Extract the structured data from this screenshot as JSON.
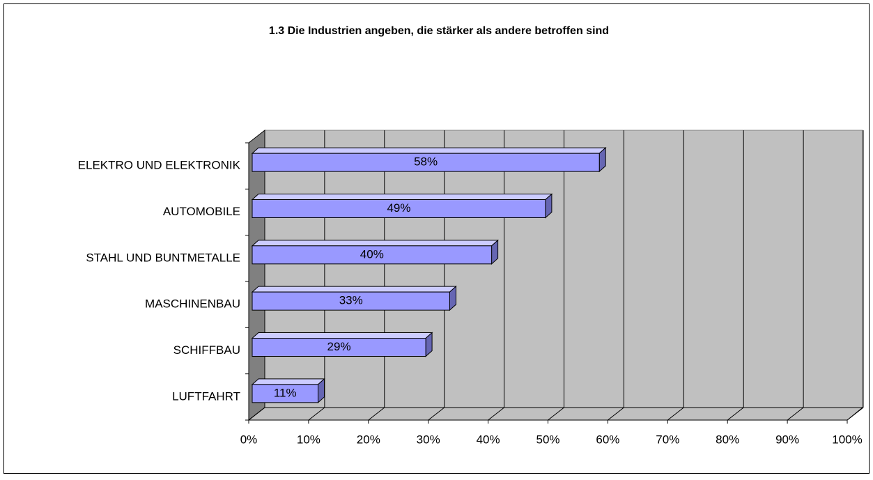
{
  "chart_data": {
    "type": "bar",
    "orientation": "horizontal",
    "title": "1.3 Die Industrien angeben, die stärker als andere betroffen sind",
    "categories": [
      "ELEKTRO UND ELEKTRONIK",
      "AUTOMOBILE",
      "STAHL UND BUNTMETALLE",
      "MASCHINENBAU",
      "SCHIFFBAU",
      "LUFTFAHRT"
    ],
    "values": [
      58,
      49,
      40,
      33,
      29,
      11
    ],
    "value_labels": [
      "58%",
      "49%",
      "40%",
      "33%",
      "29%",
      "11%"
    ],
    "color": "#9999ff",
    "xlim": [
      0,
      100
    ],
    "xticks": [
      {
        "value": 0,
        "label": "0%"
      },
      {
        "value": 10,
        "label": "10%"
      },
      {
        "value": 20,
        "label": "20%"
      },
      {
        "value": 30,
        "label": "30%"
      },
      {
        "value": 40,
        "label": "40%"
      },
      {
        "value": 50,
        "label": "50%"
      },
      {
        "value": 60,
        "label": "60%"
      },
      {
        "value": 70,
        "label": "70%"
      },
      {
        "value": 80,
        "label": "80%"
      },
      {
        "value": 90,
        "label": "90%"
      },
      {
        "value": 100,
        "label": "100%"
      }
    ],
    "grid": true
  }
}
